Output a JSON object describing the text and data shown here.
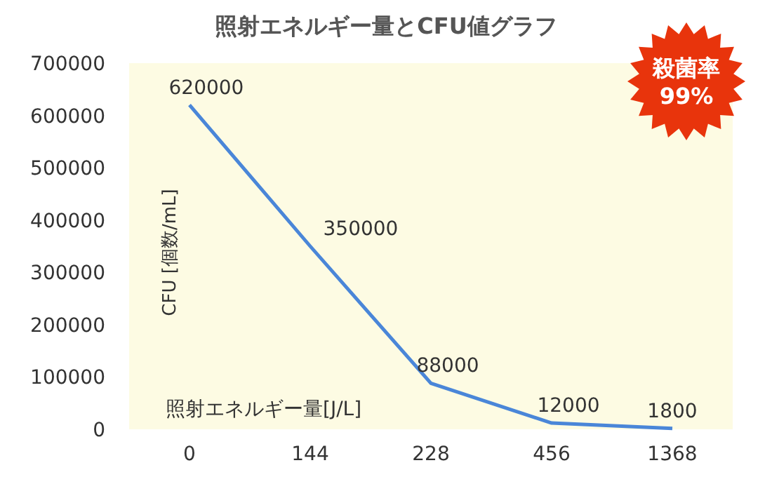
{
  "chart_data": {
    "type": "line",
    "title": "照射エネルギー量とCFU値グラフ",
    "xlabel": "照射エネルギー量[J/L]",
    "ylabel": "CFU [個数/mL]",
    "categories": [
      "0",
      "144",
      "228",
      "456",
      "1368"
    ],
    "series": [
      {
        "color": "#4a86d8",
        "values": [
          620000,
          350000,
          88000,
          12000,
          1800
        ]
      }
    ],
    "ylim": [
      0,
      700000
    ],
    "yticks": [
      0,
      100000,
      200000,
      300000,
      400000,
      500000,
      600000,
      700000
    ],
    "data_labels": true,
    "marker": "none",
    "line_style": "solid",
    "annotations": [
      "殺菌率\n99%"
    ]
  }
}
